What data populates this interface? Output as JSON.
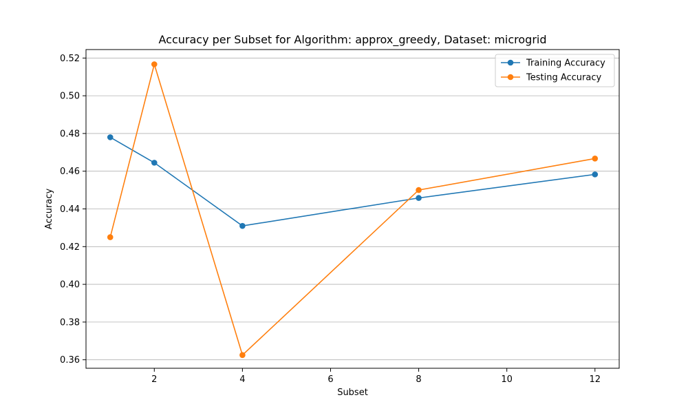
{
  "chart_data": {
    "type": "line",
    "title": "Accuracy per Subset for Algorithm: approx_greedy, Dataset: microgrid",
    "xlabel": "Subset",
    "ylabel": "Accuracy",
    "x": [
      1,
      2,
      4,
      8,
      12
    ],
    "xlim": [
      0.45,
      12.55
    ],
    "ylim": [
      0.3555,
      0.5245
    ],
    "xticks": [
      2,
      4,
      6,
      8,
      10,
      12
    ],
    "xtick_labels": [
      "2",
      "4",
      "6",
      "8",
      "10",
      "12"
    ],
    "yticks": [
      0.36,
      0.38,
      0.4,
      0.42,
      0.44,
      0.46,
      0.48,
      0.5,
      0.52
    ],
    "ytick_labels": [
      "0.36",
      "0.38",
      "0.40",
      "0.42",
      "0.44",
      "0.46",
      "0.48",
      "0.50",
      "0.52"
    ],
    "grid": "horizontal",
    "legend_position": "top-right",
    "series": [
      {
        "name": "Training Accuracy",
        "color": "#1f77b4",
        "values": [
          0.478,
          0.4645,
          0.431,
          0.4458,
          0.4583
        ]
      },
      {
        "name": "Testing Accuracy",
        "color": "#ff7f0e",
        "values": [
          0.425,
          0.5167,
          0.3625,
          0.45,
          0.4667
        ]
      }
    ]
  }
}
